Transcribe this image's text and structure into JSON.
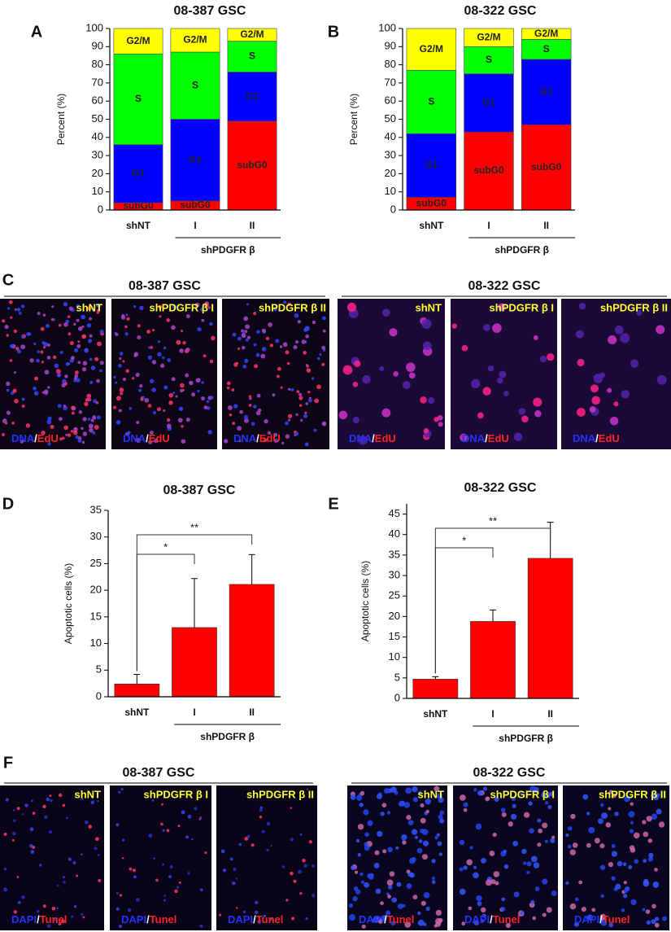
{
  "chart_data": [
    {
      "type": "stacked_bar",
      "letter": "A",
      "title": "08-387 GSC",
      "ylabel": "Percent (%)",
      "categories": [
        "shNT",
        "I",
        "II"
      ],
      "group_label": "shPDGFR β",
      "series": [
        {
          "name": "subG0",
          "color": "#ff0000",
          "values": [
            4,
            5,
            49
          ]
        },
        {
          "name": "G1",
          "color": "#0000ff",
          "values": [
            32,
            45,
            27
          ]
        },
        {
          "name": "S",
          "color": "#00ff00",
          "values": [
            50,
            37,
            17
          ]
        },
        {
          "name": "G2/M",
          "color": "#ffff00",
          "values": [
            14,
            13,
            7
          ]
        }
      ],
      "ylim": [
        0,
        100
      ],
      "yticks": [
        0,
        10,
        20,
        30,
        40,
        50,
        60,
        70,
        80,
        90,
        100
      ]
    },
    {
      "type": "stacked_bar",
      "letter": "B",
      "title": "08-322 GSC",
      "ylabel": "Percent (%)",
      "categories": [
        "shNT",
        "I",
        "II"
      ],
      "group_label": "shPDGFR β",
      "series": [
        {
          "name": "subG0",
          "color": "#ff0000",
          "values": [
            7,
            43,
            47
          ]
        },
        {
          "name": "G1",
          "color": "#0000ff",
          "values": [
            35,
            32,
            36
          ]
        },
        {
          "name": "S",
          "color": "#00ff00",
          "values": [
            35,
            15,
            11
          ]
        },
        {
          "name": "G2/M",
          "color": "#ffff00",
          "values": [
            23,
            10,
            6
          ]
        }
      ],
      "ylim": [
        0,
        100
      ],
      "yticks": [
        0,
        10,
        20,
        30,
        40,
        50,
        60,
        70,
        80,
        90,
        100
      ]
    },
    {
      "type": "bar",
      "letter": "D",
      "title": "08-387 GSC",
      "ylabel": "Apoptotic cells (%)",
      "categories": [
        "shNT",
        "I",
        "II"
      ],
      "group_label": "shPDGFR β",
      "values": [
        2.4,
        13,
        21.1
      ],
      "errors": [
        1.8,
        9.2,
        5.6
      ],
      "color": "#ff0000",
      "significance": [
        {
          "between": [
            "shNT",
            "I"
          ],
          "label": "*"
        },
        {
          "between": [
            "shNT",
            "II"
          ],
          "label": "**"
        }
      ],
      "ylim": [
        0,
        35
      ],
      "yticks": [
        0,
        5,
        10,
        15,
        20,
        25,
        30,
        35
      ]
    },
    {
      "type": "bar",
      "letter": "E",
      "title": "08-322 GSC",
      "ylabel": "Apoptotic cells (%)",
      "categories": [
        "shNT",
        "I",
        "II"
      ],
      "group_label": "shPDGFR β",
      "values": [
        4.7,
        18.8,
        34.2
      ],
      "errors": [
        0.6,
        2.8,
        8.8
      ],
      "color": "#ff0000",
      "significance": [
        {
          "between": [
            "shNT",
            "I"
          ],
          "label": "*"
        },
        {
          "between": [
            "shNT",
            "II"
          ],
          "label": "**"
        }
      ],
      "ylim": [
        0,
        47.5
      ],
      "yticks": [
        0,
        5,
        10,
        15,
        20,
        25,
        30,
        35,
        40,
        45
      ]
    }
  ],
  "image_panels": [
    {
      "letter": "C",
      "stain": [
        "DNA",
        "/",
        "EdU"
      ],
      "groups": [
        {
          "title": "08-387 GSC",
          "images": [
            "shNT",
            "shPDGFR β I",
            "shPDGFR β II"
          ]
        },
        {
          "title": "08-322 GSC",
          "images": [
            "shNT",
            "shPDGFR β I",
            "shPDGFR β II"
          ]
        }
      ]
    },
    {
      "letter": "F",
      "stain": [
        "DAPI",
        "/",
        "Tunel"
      ],
      "groups": [
        {
          "title": "08-387 GSC",
          "images": [
            "shNT",
            "shPDGFR β I",
            "shPDGFR β II"
          ]
        },
        {
          "title": "08-322 GSC",
          "images": [
            "shNT",
            "shPDGFR β I",
            "shPDGFR β II"
          ]
        }
      ]
    }
  ]
}
